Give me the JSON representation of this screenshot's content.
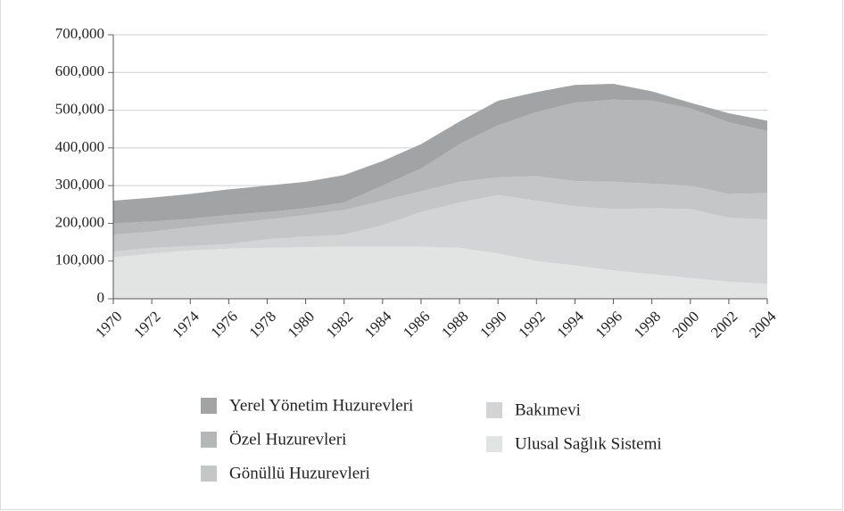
{
  "chart_data": {
    "type": "stacked_area",
    "x": [
      1970,
      1972,
      1974,
      1976,
      1978,
      1980,
      1982,
      1984,
      1986,
      1988,
      1990,
      1992,
      1994,
      1996,
      1998,
      2000,
      2002,
      2004
    ],
    "xlim": [
      1970,
      2004
    ],
    "xticks": [
      1970,
      1972,
      1974,
      1976,
      1978,
      1980,
      1982,
      1984,
      1986,
      1988,
      1990,
      1992,
      1994,
      1996,
      1998,
      2000,
      2002,
      2004
    ],
    "ylim": [
      0,
      700000
    ],
    "yticks": [
      0,
      {
        "value": 100000,
        "label": "100,000"
      },
      {
        "value": 200000,
        "label": "200,000"
      },
      {
        "value": 300000,
        "label": "300,000"
      },
      {
        "value": 400000,
        "label": "400,000"
      },
      {
        "value": 500000,
        "label": "500,000"
      },
      {
        "value": 600000,
        "label": "600,000"
      },
      {
        "value": 700000,
        "label": "700,000"
      }
    ],
    "grid": true,
    "series": [
      {
        "name": "Yerel Yönetim Huzurevleri",
        "color": "#a2a3a5",
        "values": [
          60000,
          63000,
          66000,
          68000,
          70000,
          70000,
          73000,
          65000,
          65000,
          60000,
          65000,
          53000,
          47000,
          42000,
          25000,
          15000,
          24000,
          27000
        ]
      },
      {
        "name": "Özel Huzurevleri",
        "color": "#b5b6b8",
        "values": [
          30000,
          27000,
          22000,
          22000,
          20000,
          18000,
          20000,
          40000,
          60000,
          100000,
          138000,
          170000,
          208000,
          218000,
          220000,
          205000,
          190000,
          165000
        ]
      },
      {
        "name": "Gönüllü Huzurevleri",
        "color": "#c5c6c7",
        "values": [
          45000,
          43000,
          50000,
          55000,
          52000,
          57000,
          65000,
          65000,
          55000,
          55000,
          47000,
          65000,
          67000,
          72000,
          65000,
          62000,
          63000,
          70000
        ]
      },
      {
        "name": "Bakımevi",
        "color": "#d3d4d5",
        "values": [
          15000,
          15000,
          12000,
          12000,
          23000,
          28000,
          32000,
          57000,
          92000,
          120000,
          155000,
          160000,
          157000,
          163000,
          175000,
          183000,
          170000,
          170000
        ]
      },
      {
        "name": "Ulusal Sağlık Sistemi",
        "color": "#e2e3e3",
        "values": [
          110000,
          120000,
          128000,
          133000,
          135000,
          137000,
          138000,
          138000,
          138000,
          135000,
          120000,
          100000,
          88000,
          75000,
          65000,
          55000,
          45000,
          40000
        ]
      }
    ]
  }
}
